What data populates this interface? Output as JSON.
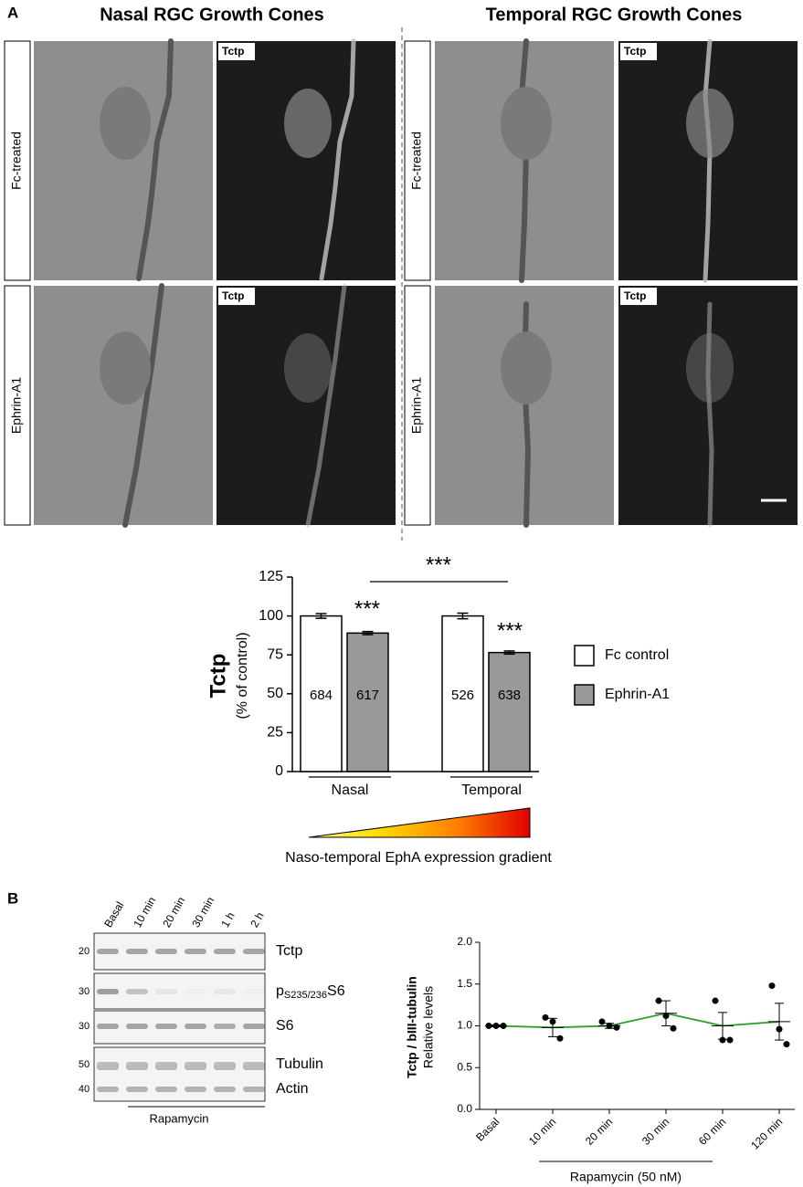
{
  "panel_a": {
    "label": "A",
    "headings": [
      "Nasal RGC Growth Cones",
      "Temporal RGC Growth Cones"
    ],
    "row_labels": [
      "Fc-treated",
      "Ephrin-A1"
    ],
    "image_tag": "Tctp"
  },
  "panel_b": {
    "label": "B",
    "lanes": [
      "Basal",
      "10 min",
      "20 min",
      "30 min",
      "1 h",
      "2 h"
    ],
    "markers": [
      "20",
      "30",
      "30",
      "50",
      "40"
    ],
    "proteins": [
      {
        "text": "Tctp"
      },
      {
        "prefix": "p",
        "sub": "S235/236",
        "suffix": "S6"
      },
      {
        "text": "S6"
      },
      {
        "text": "Tubulin"
      },
      {
        "text": "Actin"
      }
    ],
    "treatment": "Rapamycin"
  },
  "chart_data": [
    {
      "type": "bar",
      "ylabel": "Tctp",
      "ylabel_sub": "(% of control)",
      "categories": [
        "Nasal",
        "Temporal"
      ],
      "series": [
        {
          "name": "Fc control",
          "color": "#ffffff",
          "values": [
            100,
            100
          ],
          "errors": [
            1.5,
            1.8
          ],
          "n": [
            684,
            526
          ]
        },
        {
          "name": "Ephrin-A1",
          "color": "#999999",
          "values": [
            89,
            76.5
          ],
          "errors": [
            1,
            1
          ],
          "n": [
            617,
            638
          ]
        }
      ],
      "ylim": [
        0,
        125
      ],
      "yticks": [
        0,
        25,
        50,
        75,
        100,
        125
      ],
      "significance": [
        "***",
        "***",
        "***"
      ],
      "gradient_label": "Naso-temporal EphA expression gradient",
      "gradient_colors": [
        "#ffff80",
        "#ffd800",
        "#ff8000",
        "#e00000"
      ]
    },
    {
      "type": "line",
      "ylabel": "Tctp / bIII-tubulin",
      "ylabel_sub": "Relative levels",
      "xlabel": "Rapamycin (50 nM)",
      "categories": [
        "Basal",
        "10 min",
        "20 min",
        "30 min",
        "60 min",
        "120 min"
      ],
      "values": [
        1.0,
        0.98,
        1.0,
        1.15,
        1.0,
        1.05
      ],
      "errors": [
        0.01,
        0.11,
        0.03,
        0.15,
        0.16,
        0.22
      ],
      "points": [
        [
          1.0,
          1.0,
          1.0
        ],
        [
          1.1,
          1.05,
          0.85
        ],
        [
          1.05,
          1.0,
          0.98
        ],
        [
          1.3,
          1.12,
          0.97
        ],
        [
          1.3,
          0.83,
          0.83
        ],
        [
          1.48,
          0.96,
          0.78
        ]
      ],
      "color": "#2ca02c",
      "ylim": [
        0,
        2
      ],
      "yticks": [
        {
          "value": 0,
          "label": "0.0"
        },
        {
          "value": 0.5,
          "label": "0.5"
        },
        {
          "value": 1,
          "label": "1.0"
        },
        {
          "value": 1.5,
          "label": "1.5"
        },
        {
          "value": 2,
          "label": "2.0"
        }
      ]
    }
  ]
}
